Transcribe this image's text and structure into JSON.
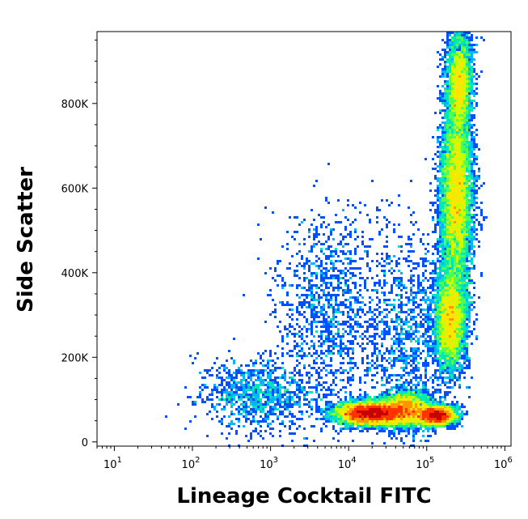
{
  "chart_data": {
    "type": "scatter",
    "style": "flow-cytometry density dot plot (pseudocolor)",
    "title": "",
    "xlabel": "Lineage Cocktail FITC",
    "ylabel": "Side Scatter",
    "x_scale": "log",
    "xlim": [
      6,
      1200000
    ],
    "ylim": [
      -10000,
      970000
    ],
    "x_ticks": [
      {
        "value": 10,
        "base": "10",
        "exp": "1"
      },
      {
        "value": 100,
        "base": "10",
        "exp": "2"
      },
      {
        "value": 1000,
        "base": "10",
        "exp": "3"
      },
      {
        "value": 10000,
        "base": "10",
        "exp": "4"
      },
      {
        "value": 100000,
        "base": "10",
        "exp": "5"
      },
      {
        "value": 1000000,
        "base": "10",
        "exp": "6"
      }
    ],
    "y_ticks": [
      {
        "value": 0,
        "label": "0"
      },
      {
        "value": 200000,
        "label": "200K"
      },
      {
        "value": 400000,
        "label": "400K"
      },
      {
        "value": 600000,
        "label": "600K"
      },
      {
        "value": 800000,
        "label": "800K"
      }
    ],
    "grid": false,
    "density_colormap": [
      "#0000c8",
      "#0050ff",
      "#00b4ff",
      "#00e6b4",
      "#50ff50",
      "#c8ff00",
      "#ffe600",
      "#ff9600",
      "#ff3200",
      "#c80000"
    ],
    "populations": [
      {
        "x_center": 20000,
        "y_center": 68000,
        "x_spread_log": 0.22,
        "y_spread": 13000,
        "relative_density": 1.0
      },
      {
        "x_center": 55000,
        "y_center": 78000,
        "x_spread_log": 0.15,
        "y_spread": 20000,
        "relative_density": 0.35
      },
      {
        "x_center": 130000,
        "y_center": 62000,
        "x_spread_log": 0.12,
        "y_spread": 11000,
        "relative_density": 0.45
      },
      {
        "x_center": 240000,
        "y_center": 580000,
        "x_spread_log": 0.1,
        "y_spread": 110000,
        "relative_density": 0.85
      },
      {
        "x_center": 200000,
        "y_center": 290000,
        "x_spread_log": 0.1,
        "y_spread": 60000,
        "relative_density": 0.5
      },
      {
        "x_center": 260000,
        "y_center": 850000,
        "x_spread_log": 0.08,
        "y_spread": 60000,
        "relative_density": 0.35
      },
      {
        "x_center": 700,
        "y_center": 110000,
        "x_spread_log": 0.35,
        "y_spread": 40000,
        "relative_density": 0.12
      },
      {
        "x_center": 6000,
        "y_center": 300000,
        "x_spread_log": 0.35,
        "y_spread": 120000,
        "relative_density": 0.15
      },
      {
        "x_center": 60000,
        "y_center": 250000,
        "x_spread_log": 0.25,
        "y_spread": 130000,
        "relative_density": 0.12
      }
    ]
  }
}
